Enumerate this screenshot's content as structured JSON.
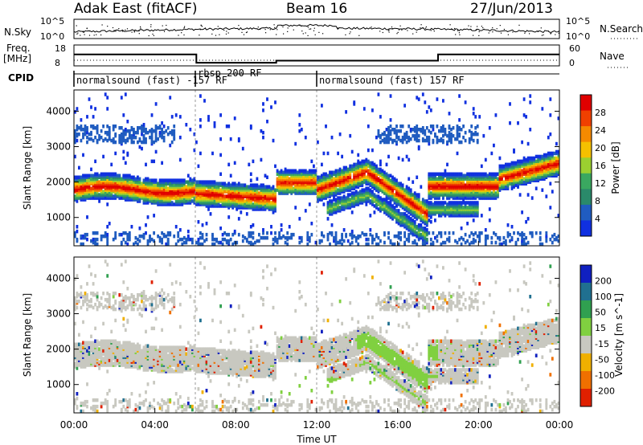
{
  "header": {
    "title": "Adak East (fitACF)",
    "beam": "Beam 16",
    "date": "27/Jun/2013"
  },
  "top_panels": {
    "nsky_label": "N.Sky",
    "nsearch_label": "N.Search",
    "nsky_ticks": [
      "10^5",
      "10^0"
    ],
    "nsearch_ticks": [
      "10^5",
      "10^0"
    ],
    "freq_label": "Freq.",
    "freq_unit": "[MHz]",
    "freq_ticks": [
      "18",
      "8"
    ],
    "nave_label": "Nave",
    "nave_ticks": [
      "60",
      "0"
    ],
    "cpid_label": "CPID",
    "cpid_segments": [
      {
        "text": "normalsound (fast) -157 RF",
        "start_hour": 0.0,
        "end_hour": 6.0
      },
      {
        "text": "rbsp 200 RF",
        "start_hour": 6.0,
        "end_hour": 12.0
      },
      {
        "text": "normalsound (fast) 157 RF",
        "start_hour": 12.0,
        "end_hour": 24.0
      }
    ],
    "freq_steps": [
      {
        "from": 0,
        "to": 6.05,
        "level": 0.55
      },
      {
        "from": 6.05,
        "to": 10.0,
        "level": 0.15
      },
      {
        "from": 10.0,
        "to": 18.0,
        "level": 0.25
      },
      {
        "from": 18.0,
        "to": 24.0,
        "level": 0.55
      }
    ]
  },
  "chart_data": [
    {
      "type": "heatmap",
      "name": "power",
      "ylabel": "Slant Range [km]",
      "ylim": [
        200,
        4600
      ],
      "y_ticks": [
        1000,
        2000,
        3000,
        4000
      ],
      "xlim": [
        0,
        24
      ],
      "colorbar": {
        "label": "Power [dB]",
        "ticks": [
          "28",
          "24",
          "20",
          "16",
          "12",
          "8",
          "4"
        ],
        "colors": [
          "#e00000",
          "#f04000",
          "#f58a00",
          "#f5c000",
          "#9bd030",
          "#3aa860",
          "#2a8a6a",
          "#205cc0",
          "#1030e0"
        ]
      },
      "bands": [
        {
          "t0": 0.0,
          "t1": 6.0,
          "r0": 1600,
          "r1": 2000,
          "intensity": "high"
        },
        {
          "t0": 6.0,
          "t1": 10.0,
          "r0": 1500,
          "r1": 1900,
          "intensity": "high"
        },
        {
          "t0": 12.0,
          "t1": 17.5,
          "r0": 1000,
          "r1": 2400,
          "intensity": "high"
        },
        {
          "t0": 17.5,
          "t1": 21.0,
          "r0": 1600,
          "r1": 2000,
          "intensity": "medium"
        },
        {
          "t0": 21.0,
          "t1": 24.0,
          "r0": 1800,
          "r1": 2600,
          "intensity": "low"
        }
      ]
    },
    {
      "type": "heatmap",
      "name": "velocity",
      "ylabel": "Slant Range [km]",
      "xlabel": "Time UT",
      "ylim": [
        200,
        4600
      ],
      "y_ticks": [
        1000,
        2000,
        3000,
        4000
      ],
      "xlim": [
        0,
        24
      ],
      "x_ticks": [
        "00:00",
        "04:00",
        "08:00",
        "12:00",
        "16:00",
        "20:00",
        "00:00"
      ],
      "colorbar": {
        "label": "Velocity [m s^-1]",
        "ticks": [
          "200",
          "100",
          "50",
          "15",
          "-15",
          "-50",
          "-100",
          "-200"
        ],
        "colors": [
          "#1020c0",
          "#207090",
          "#30a050",
          "#80d040",
          "#c8c8c0",
          "#f0b000",
          "#f07000",
          "#e02000"
        ]
      }
    }
  ]
}
